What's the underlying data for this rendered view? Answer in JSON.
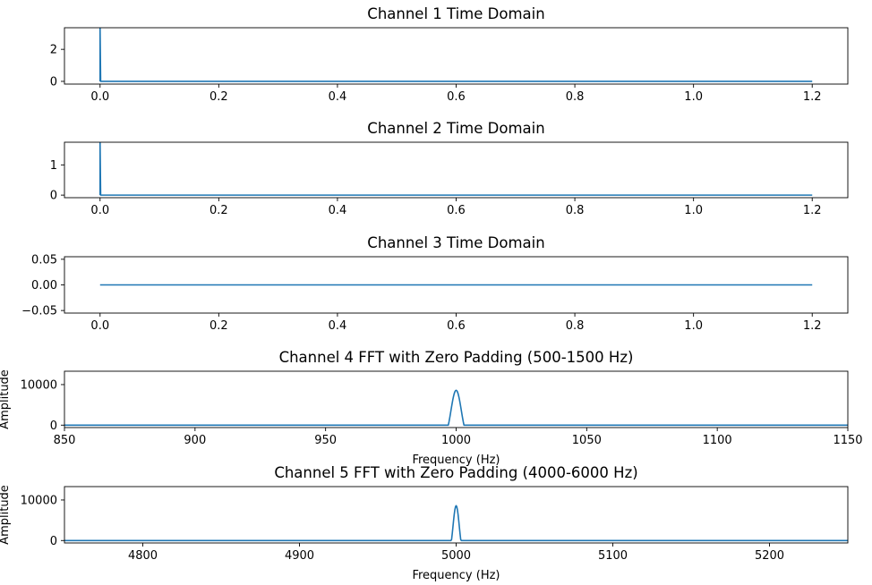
{
  "chart_data": [
    {
      "type": "line",
      "title": "Channel 1 Time Domain",
      "xlabel": "",
      "ylabel": "",
      "xlim": [
        -0.06,
        1.26
      ],
      "ylim": [
        -0.17,
        3.35
      ],
      "xticks": [
        0.0,
        0.2,
        0.4,
        0.6,
        0.8,
        1.0,
        1.2
      ],
      "xtick_labels": [
        "0.0",
        "0.2",
        "0.4",
        "0.6",
        "0.8",
        "1.0",
        "1.2"
      ],
      "yticks": [
        0,
        2
      ],
      "ytick_labels": [
        "0",
        "2"
      ],
      "grid": false,
      "series": [
        {
          "color": "#1f77b4",
          "x": [
            0,
            0,
            0.001,
            1.2
          ],
          "y": [
            0,
            3.35,
            0,
            0
          ]
        }
      ]
    },
    {
      "type": "line",
      "title": "Channel 2 Time Domain",
      "xlabel": "",
      "ylabel": "",
      "xlim": [
        -0.06,
        1.26
      ],
      "ylim": [
        -0.085,
        1.75
      ],
      "xticks": [
        0.0,
        0.2,
        0.4,
        0.6,
        0.8,
        1.0,
        1.2
      ],
      "xtick_labels": [
        "0.0",
        "0.2",
        "0.4",
        "0.6",
        "0.8",
        "1.0",
        "1.2"
      ],
      "yticks": [
        0,
        1
      ],
      "ytick_labels": [
        "0",
        "1"
      ],
      "grid": false,
      "series": [
        {
          "color": "#1f77b4",
          "x": [
            0,
            0,
            0.001,
            1.2
          ],
          "y": [
            0,
            1.75,
            0,
            0
          ]
        }
      ]
    },
    {
      "type": "line",
      "title": "Channel 3 Time Domain",
      "xlabel": "",
      "ylabel": "",
      "xlim": [
        -0.06,
        1.26
      ],
      "ylim": [
        -0.055,
        0.055
      ],
      "xticks": [
        0.0,
        0.2,
        0.4,
        0.6,
        0.8,
        1.0,
        1.2
      ],
      "xtick_labels": [
        "0.0",
        "0.2",
        "0.4",
        "0.6",
        "0.8",
        "1.0",
        "1.2"
      ],
      "yticks": [
        -0.05,
        0.0,
        0.05
      ],
      "ytick_labels": [
        "−0.05",
        "0.00",
        "0.05"
      ],
      "grid": false,
      "series": [
        {
          "color": "#1f77b4",
          "x": [
            0,
            1.2
          ],
          "y": [
            0,
            0
          ]
        }
      ]
    },
    {
      "type": "line",
      "title": "Channel 4 FFT with Zero Padding (500-1500 Hz)",
      "xlabel": "Frequency (Hz)",
      "ylabel": "Amplitude",
      "xlim": [
        850,
        1150
      ],
      "ylim": [
        -600,
        13300
      ],
      "xticks": [
        850,
        900,
        950,
        1000,
        1050,
        1100,
        1150
      ],
      "xtick_labels": [
        "850",
        "900",
        "950",
        "1000",
        "1050",
        "1100",
        "1150"
      ],
      "yticks": [
        0,
        10000
      ],
      "ytick_labels": [
        "0",
        "10000"
      ],
      "grid": false,
      "series": [
        {
          "color": "#1f77b4",
          "peak_center": 1000,
          "peak_height": 8600,
          "peak_halfwidth": 3
        }
      ]
    },
    {
      "type": "line",
      "title": "Channel 5 FFT with Zero Padding (4000-6000 Hz)",
      "xlabel": "Frequency (Hz)",
      "ylabel": "Amplitude",
      "xlim": [
        4750,
        5250
      ],
      "ylim": [
        -600,
        13300
      ],
      "xticks": [
        4800,
        4900,
        5000,
        5100,
        5200
      ],
      "xtick_labels": [
        "4800",
        "4900",
        "5000",
        "5100",
        "5200"
      ],
      "yticks": [
        0,
        10000
      ],
      "ytick_labels": [
        "0",
        "10000"
      ],
      "grid": false,
      "series": [
        {
          "color": "#1f77b4",
          "peak_center": 5000,
          "peak_height": 8600,
          "peak_halfwidth": 3
        }
      ]
    }
  ]
}
